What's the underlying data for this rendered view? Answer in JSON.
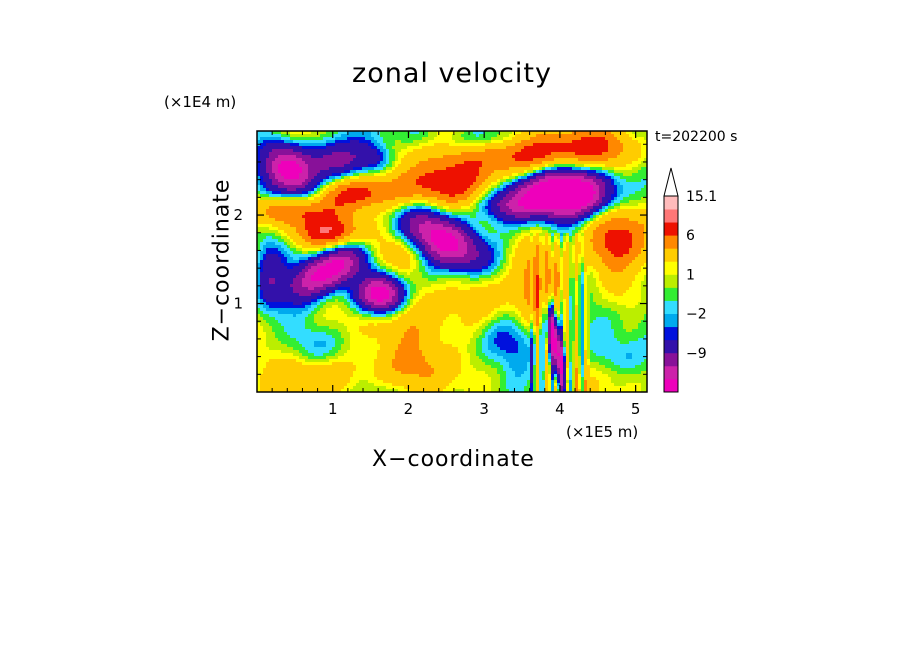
{
  "chart_data": {
    "type": "heatmap",
    "title": "zonal velocity",
    "xlabel": "X−coordinate",
    "ylabel": "Z−coordinate",
    "x_unit": "(×1E5 m)",
    "z_unit": "(×1E4 m)",
    "time_label": "t=202200 s",
    "xlim": [
      0,
      5.15
    ],
    "ylim": [
      0,
      2.95
    ],
    "x_ticks": [
      1,
      2,
      3,
      4,
      5
    ],
    "y_ticks": [
      1,
      2
    ],
    "colorbar": {
      "labels": [
        {
          "text": "15.1",
          "level": 15.1
        },
        {
          "text": "6",
          "level": 6
        },
        {
          "text": "1",
          "level": 1
        },
        {
          "text": "−2",
          "level": -2
        },
        {
          "text": "−9",
          "level": -9
        }
      ],
      "levels": [
        -15,
        -12,
        -9,
        -6,
        -3,
        -2,
        -1,
        0,
        1,
        2,
        3,
        6,
        9,
        12,
        15.1
      ],
      "colors": [
        "#ee00bb",
        "#cc22aa",
        "#881199",
        "#3311aa",
        "#0011dd",
        "#00aaee",
        "#33ddff",
        "#33ee33",
        "#bbee00",
        "#ffff00",
        "#ffcc00",
        "#ff8800",
        "#ee1100",
        "#ff7777",
        "#ffbbbb"
      ],
      "extend_top": true
    }
  }
}
